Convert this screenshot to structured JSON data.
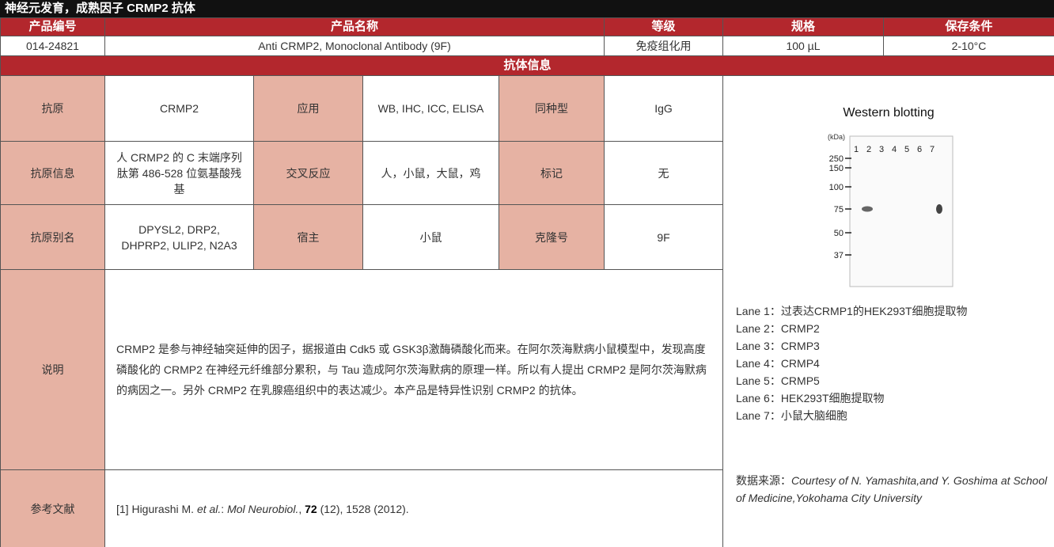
{
  "title": "神经元发育，成熟因子 CRMP2 抗体",
  "header": [
    "产品编号",
    "产品名称",
    "等级",
    "规格",
    "保存条件"
  ],
  "product": [
    "014-24821",
    "Anti CRMP2, Monoclonal Antibody (9F)",
    "免疫组化用",
    "100 µL",
    "2-10°C"
  ],
  "section": "抗体信息",
  "info": [
    [
      "抗原",
      "CRMP2",
      "应用",
      "WB, IHC, ICC, ELISA",
      "同种型",
      "IgG"
    ],
    [
      "抗原信息",
      "人 CRMP2 的 C 末端序列肽第 486-528 位氨基酸残基",
      "交叉反应",
      "人，小鼠，大鼠，鸡",
      "标记",
      "无"
    ],
    [
      "抗原别名",
      "DPYSL2, DRP2, DHPRP2, ULIP2, N2A3",
      "宿主",
      "小鼠",
      "克隆号",
      "9F"
    ]
  ],
  "description": {
    "label": "说明",
    "text": "CRMP2 是参与神经轴突延伸的因子，据报道由 Cdk5 或 GSK3β激酶磷酸化而来。在阿尔茨海默病小鼠模型中，发现高度磷酸化的 CRMP2 在神经元纤维部分累积，与 Tau 造成阿尔茨海默病的原理一样。所以有人提出 CRMP2 是阿尔茨海默病的病因之一。另外 CRMP2 在乳腺癌组织中的表达减少。本产品是特异性识别 CRMP2 的抗体。"
  },
  "reference": {
    "label": "参考文献",
    "parts": [
      {
        "text": "[1] Higurashi M. "
      },
      {
        "text": "et al.",
        "style": "italic"
      },
      {
        "text": ": "
      },
      {
        "text": "Mol Neurobiol.",
        "style": "italic"
      },
      {
        "text": ", "
      },
      {
        "text": "72",
        "style": "bold"
      },
      {
        "text": " (12), 1528 (2012)."
      }
    ]
  },
  "figure": {
    "title": "Western blotting",
    "unit": "(kDa)",
    "markers": [
      250,
      150,
      100,
      75,
      50,
      37
    ],
    "lanes": [
      "1",
      "2",
      "3",
      "4",
      "5",
      "6",
      "7"
    ],
    "legend": [
      "Lane 1：过表达CRMP1的HEK293T细胞提取物",
      "Lane 2：CRMP2",
      "Lane 3：CRMP3",
      "Lane 4：CRMP4",
      "Lane 5：CRMP5",
      "Lane 6：HEK293T细胞提取物",
      "Lane 7：小鼠大脑细胞"
    ],
    "source_label": "数据来源：",
    "source": "Courtesy of N. Yamashita,and Y. Goshima at School of Medicine,Yokohama City University"
  }
}
